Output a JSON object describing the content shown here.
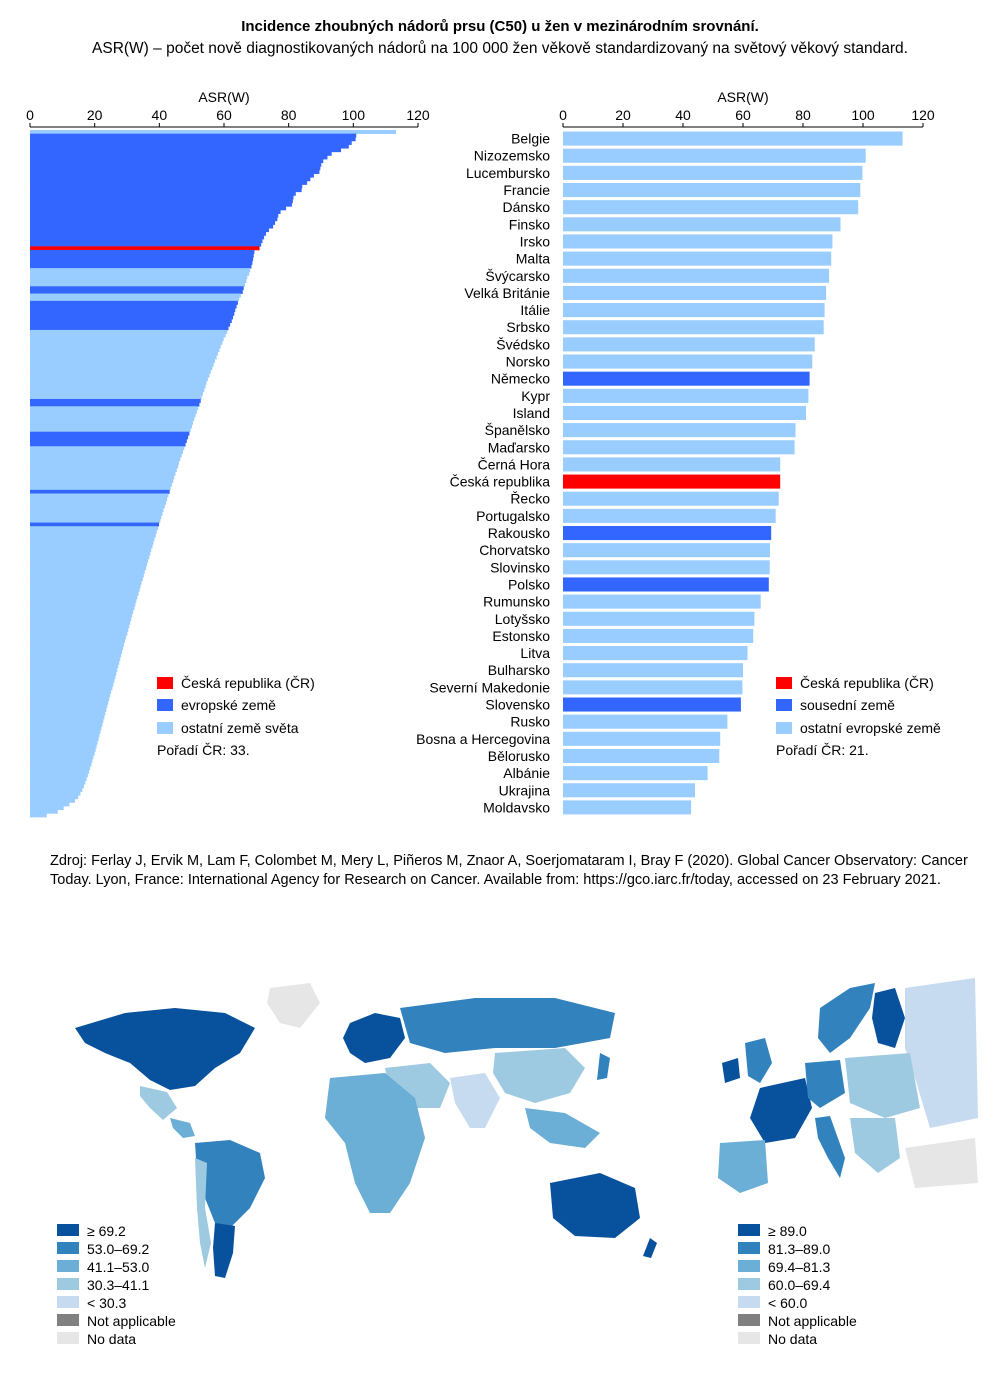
{
  "title": "Incidence zhoubných nádorů prsu (C50) u žen v mezinárodním srovnání.",
  "subtitle": "ASR(W) – počet nově diagnostikovaných nádorů na 100 000 žen věkově standardizovaný na světový věkový standard.",
  "colors": {
    "highlight": "#ff0000",
    "group": "#3366ff",
    "other": "#99ccff"
  },
  "chart_data": [
    {
      "type": "bar",
      "orientation": "horizontal",
      "axis_label": "ASR(W)",
      "xlim": [
        0,
        120
      ],
      "ticks": [
        0,
        20,
        40,
        60,
        80,
        100,
        120
      ],
      "grid": false,
      "legend_position": "bottom-right",
      "note": "Pořadí ČR: 33.",
      "legend": [
        {
          "label": "Česká republika (ČR)",
          "color": "#ff0000",
          "kind": "highlight"
        },
        {
          "label": "evropské země",
          "color": "#3366ff",
          "kind": "group"
        },
        {
          "label": "ostatní země světa",
          "color": "#99ccff",
          "kind": "other"
        }
      ],
      "values": [
        113.2,
        100.9,
        100.7,
        99.5,
        98.6,
        96.2,
        93.3,
        92.0,
        90.7,
        90.1,
        89.8,
        89.5,
        87.8,
        86.7,
        85.7,
        84.2,
        84.0,
        82.2,
        81.5,
        81.3,
        81.0,
        79.2,
        77.5,
        76.8,
        76.5,
        75.8,
        75.2,
        73.9,
        73.0,
        72.4,
        71.9,
        71.5,
        71.0,
        69.4,
        69.2,
        69.0,
        68.8,
        68.5,
        68.1,
        67.8,
        67.2,
        66.9,
        66.5,
        66.1,
        65.8,
        65.2,
        64.7,
        64.3,
        63.9,
        63.5,
        63.2,
        62.8,
        62.4,
        61.9,
        61.4,
        61.0,
        60.5,
        59.9,
        59.5,
        59.0,
        58.6,
        58.1,
        57.7,
        57.2,
        56.8,
        56.4,
        55.9,
        55.5,
        55.0,
        54.6,
        54.3,
        53.9,
        53.5,
        53.1,
        52.8,
        52.4,
        52.0,
        51.6,
        51.2,
        50.8,
        50.4,
        50.1,
        49.7,
        49.3,
        48.9,
        48.5,
        48.1,
        47.7,
        47.3,
        46.9,
        46.5,
        46.1,
        45.8,
        45.4,
        45.0,
        44.6,
        44.3,
        43.9,
        43.5,
        43.2,
        42.8,
        42.4,
        42.1,
        41.7,
        41.3,
        41.0,
        40.6,
        40.3,
        39.9,
        39.6,
        39.2,
        38.9,
        38.5,
        38.2,
        37.9,
        37.5,
        37.2,
        36.9,
        36.5,
        36.2,
        35.9,
        35.5,
        35.2,
        34.9,
        34.5,
        34.2,
        33.9,
        33.6,
        33.2,
        32.9,
        32.6,
        32.3,
        31.9,
        31.6,
        31.3,
        31.0,
        30.7,
        30.4,
        30.1,
        29.7,
        29.4,
        29.1,
        28.8,
        28.5,
        28.2,
        27.9,
        27.6,
        27.3,
        27.0,
        26.7,
        26.4,
        26.1,
        25.8,
        25.5,
        25.1,
        24.8,
        24.5,
        24.2,
        23.9,
        23.6,
        23.3,
        23.0,
        22.7,
        22.4,
        22.1,
        21.8,
        21.5,
        21.2,
        20.9,
        20.6,
        20.3,
        20.0,
        19.6,
        19.3,
        19.0,
        18.6,
        18.3,
        17.9,
        17.5,
        17.1,
        16.7,
        16.2,
        15.6,
        14.9,
        13.9,
        12.2,
        10.4,
        8.6,
        5.2
      ],
      "groups": {
        "highlight": [
          32
        ],
        "group": [
          1,
          2,
          3,
          4,
          5,
          6,
          7,
          8,
          9,
          10,
          11,
          12,
          13,
          14,
          15,
          16,
          17,
          18,
          19,
          20,
          21,
          22,
          23,
          24,
          25,
          26,
          27,
          28,
          29,
          30,
          31,
          33,
          34,
          35,
          36,
          37,
          43,
          44,
          47,
          48,
          49,
          50,
          51,
          52,
          53,
          54,
          74,
          75,
          83,
          84,
          85,
          86,
          99,
          108
        ]
      }
    },
    {
      "type": "bar",
      "orientation": "horizontal",
      "axis_label": "ASR(W)",
      "xlim": [
        0,
        120
      ],
      "ticks": [
        0,
        20,
        40,
        60,
        80,
        100,
        120
      ],
      "grid": false,
      "legend_position": "bottom-right",
      "note": "Pořadí ČR: 21.",
      "legend": [
        {
          "label": "Česká republika (ČR)",
          "color": "#ff0000",
          "kind": "highlight"
        },
        {
          "label": "sousední země",
          "color": "#3366ff",
          "kind": "group"
        },
        {
          "label": "ostatní evropské země",
          "color": "#99ccff",
          "kind": "other"
        }
      ],
      "categories": [
        "Belgie",
        "Nizozemsko",
        "Lucembursko",
        "Francie",
        "Dánsko",
        "Finsko",
        "Irsko",
        "Malta",
        "Švýcarsko",
        "Velká Británie",
        "Itálie",
        "Srbsko",
        "Švédsko",
        "Norsko",
        "Německo",
        "Kypr",
        "Island",
        "Španělsko",
        "Maďarsko",
        "Černá Hora",
        "Česká republika",
        "Řecko",
        "Portugalsko",
        "Rakousko",
        "Chorvatsko",
        "Slovinsko",
        "Polsko",
        "Rumunsko",
        "Lotyšsko",
        "Estonsko",
        "Litva",
        "Bulharsko",
        "Severní Makedonie",
        "Slovensko",
        "Rusko",
        "Bosna a Hercegovina",
        "Bělorusko",
        "Albánie",
        "Ukrajina",
        "Moldavsko"
      ],
      "values": [
        113.2,
        100.9,
        99.8,
        99.1,
        98.4,
        92.5,
        89.8,
        89.4,
        88.7,
        87.7,
        87.2,
        86.9,
        83.9,
        83.1,
        82.2,
        81.8,
        81.0,
        77.5,
        77.2,
        72.4,
        72.4,
        71.9,
        70.9,
        69.4,
        69.0,
        68.9,
        68.6,
        65.9,
        63.8,
        63.4,
        61.5,
        60.0,
        59.8,
        59.3,
        54.8,
        52.4,
        52.1,
        48.2,
        44.0,
        42.7
      ],
      "groups": {
        "highlight": [
          20
        ],
        "group": [
          14,
          23,
          26,
          33
        ]
      }
    }
  ],
  "source": "Zdroj: Ferlay J, Ervik M, Lam F, Colombet M, Mery L, Piñeros M, Znaor A, Soerjomataram I, Bray F (2020). Global Cancer Observatory: Cancer Today. Lyon, France: International Agency for Research on Cancer. Available from: https://gco.iarc.fr/today, accessed on 23 February 2021.",
  "maps": {
    "world_legend": [
      {
        "label": "≥ 69.2",
        "color": "#08519c"
      },
      {
        "label": "53.0–69.2",
        "color": "#3182bd"
      },
      {
        "label": "41.1–53.0",
        "color": "#6baed6"
      },
      {
        "label": "30.3–41.1",
        "color": "#9ecae1"
      },
      {
        "label": "< 30.3",
        "color": "#c6dbef"
      },
      {
        "label": "Not applicable",
        "color": "#808080"
      },
      {
        "label": "No data",
        "color": "#e6e6e6"
      }
    ],
    "europe_legend": [
      {
        "label": "≥ 89.0",
        "color": "#08519c"
      },
      {
        "label": "81.3–89.0",
        "color": "#3182bd"
      },
      {
        "label": "69.4–81.3",
        "color": "#6baed6"
      },
      {
        "label": "60.0–69.4",
        "color": "#9ecae1"
      },
      {
        "label": "< 60.0",
        "color": "#c6dbef"
      },
      {
        "label": "Not applicable",
        "color": "#808080"
      },
      {
        "label": "No data",
        "color": "#e6e6e6"
      }
    ]
  }
}
